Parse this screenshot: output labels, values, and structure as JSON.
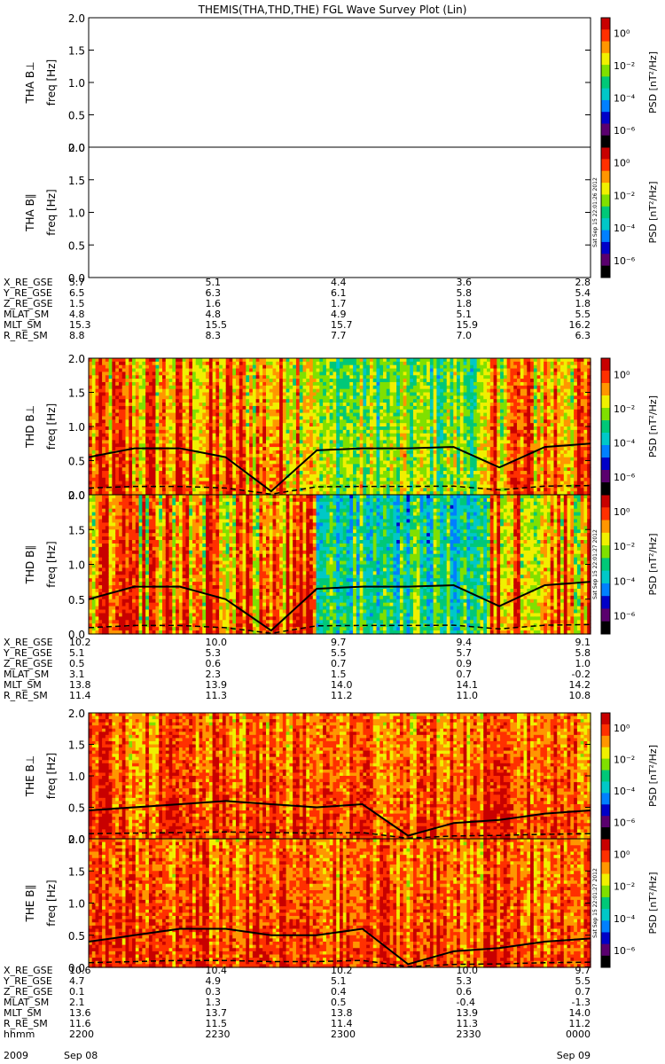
{
  "title": "THEMIS(THA,THD,THE) FGL Wave Survey Plot (Lin)",
  "colorbar": {
    "label": "PSD [nT²/Hz]",
    "ticks": [
      "10⁰",
      "10⁻²",
      "10⁻⁴",
      "10⁻⁶"
    ],
    "colors": [
      "#000000",
      "#5a006e",
      "#0000c8",
      "#0080ff",
      "#00c8c8",
      "#00c878",
      "#80e000",
      "#f0f000",
      "#ff9600",
      "#ff3000",
      "#c80000"
    ]
  },
  "stamps": [
    "Sat Sep 15 22:01:26 2012",
    "Sat Sep 15 22:01:27 2012",
    "Sat Sep 15 22:01:27 2012"
  ],
  "chart_data": [
    {
      "type": "heatmap",
      "probe": "THA",
      "ylabel": "THA B⊥",
      "yunits": "freq [Hz]",
      "ylim": [
        0,
        2.0
      ],
      "yticks": [
        "2.0",
        "1.5",
        "1.0",
        "0.5",
        "0.0"
      ],
      "empty": true
    },
    {
      "type": "heatmap",
      "probe": "THA",
      "ylabel": "THA B∥",
      "yunits": "freq [Hz]",
      "ylim": [
        0,
        2.0
      ],
      "yticks": [
        "2.0",
        "1.5",
        "1.0",
        "0.5",
        "0.0"
      ],
      "empty": true
    },
    {
      "type": "heatmap",
      "probe": "THD",
      "ylabel": "THD B⊥",
      "yunits": "freq [Hz]",
      "ylim": [
        0,
        2.0
      ],
      "yticks": [
        "2.0",
        "1.5",
        "1.0",
        "0.5",
        "0.0"
      ],
      "empty": false,
      "gyro_line_approx": [
        0.55,
        0.68,
        0.68,
        0.55,
        0.05,
        0.65,
        0.68,
        0.68,
        0.7,
        0.4,
        0.7,
        0.75
      ]
    },
    {
      "type": "heatmap",
      "probe": "THD",
      "ylabel": "THD B∥",
      "yunits": "freq [Hz]",
      "ylim": [
        0,
        2.0
      ],
      "yticks": [
        "2.0",
        "1.5",
        "1.0",
        "0.5",
        "0.0"
      ],
      "empty": false,
      "gyro_line_approx": [
        0.5,
        0.68,
        0.68,
        0.5,
        0.05,
        0.65,
        0.68,
        0.68,
        0.7,
        0.4,
        0.7,
        0.75
      ]
    },
    {
      "type": "heatmap",
      "probe": "THE",
      "ylabel": "THE B⊥",
      "yunits": "freq [Hz]",
      "ylim": [
        0,
        2.0
      ],
      "yticks": [
        "2.0",
        "1.5",
        "1.0",
        "0.5",
        "0.0"
      ],
      "empty": false,
      "gyro_line_approx": [
        0.45,
        0.5,
        0.55,
        0.6,
        0.55,
        0.5,
        0.55,
        0.05,
        0.25,
        0.3,
        0.4,
        0.45
      ]
    },
    {
      "type": "heatmap",
      "probe": "THE",
      "ylabel": "THE B∥",
      "yunits": "freq [Hz]",
      "ylim": [
        0,
        2.0
      ],
      "yticks": [
        "2.0",
        "1.5",
        "1.0",
        "0.5",
        "0.0"
      ],
      "empty": false,
      "gyro_line_approx": [
        0.4,
        0.5,
        0.6,
        0.6,
        0.5,
        0.5,
        0.6,
        0.05,
        0.25,
        0.3,
        0.4,
        0.45
      ]
    }
  ],
  "ephemeris": [
    {
      "probe": "THA",
      "rows": [
        {
          "label": "X_RE_GSE",
          "values": [
            "5.7",
            "5.1",
            "4.4",
            "3.6",
            "2.8"
          ]
        },
        {
          "label": "Y_RE_GSE",
          "values": [
            "6.5",
            "6.3",
            "6.1",
            "5.8",
            "5.4"
          ]
        },
        {
          "label": "Z_RE_GSE",
          "values": [
            "1.5",
            "1.6",
            "1.7",
            "1.8",
            "1.8"
          ]
        },
        {
          "label": "MLAT_SM",
          "values": [
            "4.8",
            "4.8",
            "4.9",
            "5.1",
            "5.5"
          ]
        },
        {
          "label": "MLT_SM",
          "values": [
            "15.3",
            "15.5",
            "15.7",
            "15.9",
            "16.2"
          ]
        },
        {
          "label": "R_RE_SM",
          "values": [
            "8.8",
            "8.3",
            "7.7",
            "7.0",
            "6.3"
          ]
        }
      ]
    },
    {
      "probe": "THD",
      "rows": [
        {
          "label": "X_RE_GSE",
          "values": [
            "10.2",
            "10.0",
            "9.7",
            "9.4",
            "9.1"
          ]
        },
        {
          "label": "Y_RE_GSE",
          "values": [
            "5.1",
            "5.3",
            "5.5",
            "5.7",
            "5.8"
          ]
        },
        {
          "label": "Z_RE_GSE",
          "values": [
            "0.5",
            "0.6",
            "0.7",
            "0.9",
            "1.0"
          ]
        },
        {
          "label": "MLAT_SM",
          "values": [
            "3.1",
            "2.3",
            "1.5",
            "0.7",
            "-0.2"
          ]
        },
        {
          "label": "MLT_SM",
          "values": [
            "13.8",
            "13.9",
            "14.0",
            "14.1",
            "14.2"
          ]
        },
        {
          "label": "R_RE_SM",
          "values": [
            "11.4",
            "11.3",
            "11.2",
            "11.0",
            "10.8"
          ]
        }
      ]
    },
    {
      "probe": "THE",
      "rows": [
        {
          "label": "X_RE_GSE",
          "values": [
            "10.6",
            "10.4",
            "10.2",
            "10.0",
            "9.7"
          ]
        },
        {
          "label": "Y_RE_GSE",
          "values": [
            "4.7",
            "4.9",
            "5.1",
            "5.3",
            "5.5"
          ]
        },
        {
          "label": "Z_RE_GSE",
          "values": [
            "0.1",
            "0.3",
            "0.4",
            "0.6",
            "0.7"
          ]
        },
        {
          "label": "MLAT_SM",
          "values": [
            "2.1",
            "1.3",
            "0.5",
            "-0.4",
            "-1.3"
          ]
        },
        {
          "label": "MLT_SM",
          "values": [
            "13.6",
            "13.7",
            "13.8",
            "13.9",
            "14.0"
          ]
        },
        {
          "label": "R_RE_SM",
          "values": [
            "11.6",
            "11.5",
            "11.4",
            "11.3",
            "11.2"
          ]
        },
        {
          "label": "hhmm",
          "values": [
            "2200",
            "2230",
            "2300",
            "2330",
            "0000"
          ]
        }
      ]
    }
  ],
  "date_row": {
    "year": "2009",
    "start": "Sep 08",
    "end": "Sep 09"
  }
}
